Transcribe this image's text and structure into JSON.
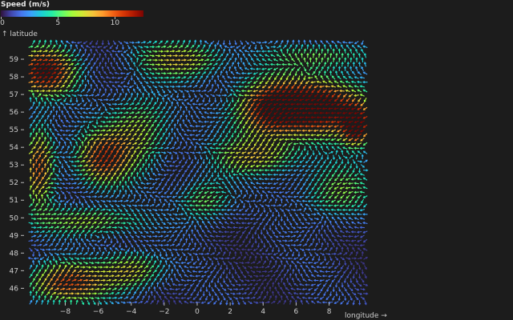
{
  "colors": {
    "background": "#1c1c1c",
    "text": "#cfcfcf",
    "colormap": [
      "#30123b",
      "#4145ab",
      "#4675ed",
      "#39a2fc",
      "#1bcfd4",
      "#24eca6",
      "#61fc6c",
      "#a4fc3b",
      "#d1e834",
      "#f3c63a",
      "#fe9b2d",
      "#f36315",
      "#d93806",
      "#b11901",
      "#7a0402"
    ]
  },
  "legend": {
    "title": "Speed (m/s)",
    "ticks": [
      {
        "value": 0,
        "label": "0"
      },
      {
        "value": 5,
        "label": "5"
      },
      {
        "value": 10,
        "label": "10"
      }
    ]
  },
  "chart_data": {
    "type": "vector-field",
    "xlabel": "longitude →",
    "ylabel": "↑ latitude",
    "xlim": [
      -10.5,
      10.5
    ],
    "ylim": [
      45.2,
      60.0
    ],
    "x_ticks": [
      -8,
      -6,
      -4,
      -2,
      0,
      2,
      4,
      6,
      8
    ],
    "x_tick_labels": [
      "−8",
      "−6",
      "−4",
      "−2",
      "0",
      "2",
      "4",
      "6",
      "8"
    ],
    "y_ticks": [
      46,
      47,
      48,
      49,
      50,
      51,
      52,
      53,
      54,
      55,
      56,
      57,
      58,
      59
    ],
    "y_tick_labels": [
      "46",
      "47",
      "48",
      "49",
      "50",
      "51",
      "52",
      "53",
      "54",
      "55",
      "56",
      "57",
      "58",
      "59"
    ],
    "speed_range": [
      0,
      12.5
    ],
    "data_extent": {
      "lon": [
        -10.1,
        10.3
      ],
      "lat": [
        45.2,
        60.0
      ]
    },
    "grid_step": {
      "lon": 0.35,
      "lat": 0.25
    },
    "regions": [
      {
        "lon": -9.3,
        "lat": 58.3,
        "speed": 11.0,
        "radius_lon": 1.8,
        "radius_lat": 1.3,
        "direction_deg": 40
      },
      {
        "lon": 7.5,
        "lat": 56.3,
        "speed": 12.0,
        "radius_lon": 2.8,
        "radius_lat": 1.5,
        "direction_deg": 200
      },
      {
        "lon": 4.3,
        "lat": 56.2,
        "speed": 9.0,
        "radius_lon": 2.0,
        "radius_lat": 1.6,
        "direction_deg": 210
      },
      {
        "lon": 9.7,
        "lat": 55.2,
        "speed": 10.5,
        "radius_lon": 0.8,
        "radius_lat": 1.0,
        "direction_deg": 190
      },
      {
        "lon": -5.8,
        "lat": 53.3,
        "speed": 8.5,
        "radius_lon": 1.6,
        "radius_lat": 1.5,
        "direction_deg": 50
      },
      {
        "lon": -9.6,
        "lat": 53.0,
        "speed": 8.5,
        "radius_lon": 0.9,
        "radius_lat": 2.2,
        "direction_deg": 60
      },
      {
        "lon": -8.0,
        "lat": 46.3,
        "speed": 9.0,
        "radius_lon": 2.3,
        "radius_lat": 1.1,
        "direction_deg": 30
      },
      {
        "lon": -1.0,
        "lat": 59.0,
        "speed": 6.5,
        "radius_lon": 2.5,
        "radius_lat": 1.0,
        "direction_deg": 20
      },
      {
        "lon": -3.5,
        "lat": 55.0,
        "speed": 5.5,
        "radius_lon": 1.8,
        "radius_lat": 2.0,
        "direction_deg": 45
      },
      {
        "lon": 3.5,
        "lat": 53.5,
        "speed": 6.0,
        "radius_lon": 2.5,
        "radius_lat": 1.0,
        "direction_deg": 220
      },
      {
        "lon": 0.5,
        "lat": 51.0,
        "speed": 5.0,
        "radius_lon": 1.5,
        "radius_lat": 1.2,
        "direction_deg": 190
      },
      {
        "lon": -6.5,
        "lat": 49.8,
        "speed": 5.5,
        "radius_lon": 3.0,
        "radius_lat": 0.8,
        "direction_deg": 10
      },
      {
        "lon": 7.5,
        "lat": 59.2,
        "speed": 4.5,
        "radius_lon": 3.0,
        "radius_lat": 0.7,
        "direction_deg": 100
      },
      {
        "lon": 8.5,
        "lat": 51.5,
        "speed": 5.0,
        "radius_lon": 2.0,
        "radius_lat": 1.5,
        "direction_deg": 200
      },
      {
        "lon": -4.0,
        "lat": 47.0,
        "speed": 6.5,
        "radius_lon": 1.8,
        "radius_lat": 1.0,
        "direction_deg": 30
      }
    ]
  }
}
